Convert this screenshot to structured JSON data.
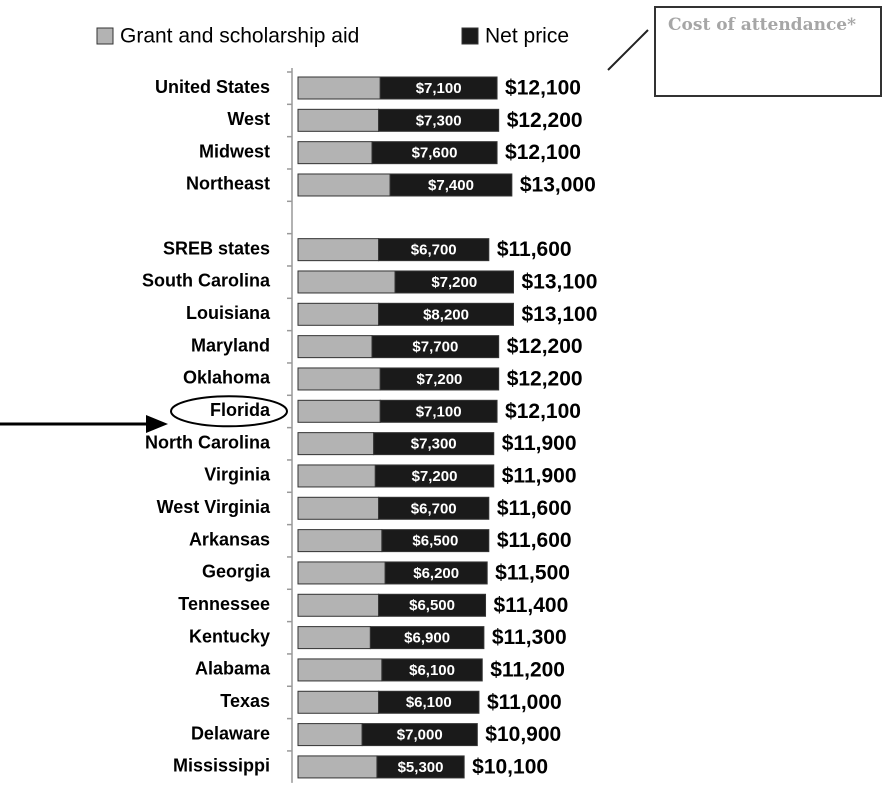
{
  "chart_data": {
    "type": "stacked-bar",
    "annotation": "Cost of attendance*",
    "categories": [
      "United States",
      "West",
      "Midwest",
      "Northeast",
      null,
      "SREB states",
      "South Carolina",
      "Louisiana",
      "Maryland",
      "Oklahoma",
      "Florida",
      "North Carolina",
      "Virginia",
      "West Virginia",
      "Arkansas",
      "Georgia",
      "Tennessee",
      "Kentucky",
      "Alabama",
      "Texas",
      "Delaware",
      "Mississippi"
    ],
    "highlight": "Florida",
    "series": [
      {
        "name": "Grant and scholarship aid",
        "color": "#b3b3b3",
        "values": [
          5000,
          4900,
          4500,
          5600,
          null,
          4900,
          5900,
          4900,
          4500,
          5000,
          5000,
          4600,
          4700,
          4900,
          5100,
          5300,
          4900,
          4400,
          5100,
          4900,
          3900,
          4800
        ]
      },
      {
        "name": "Net price",
        "color": "#1a1a1a",
        "values": [
          7100,
          7300,
          7600,
          7400,
          null,
          6700,
          7200,
          8200,
          7700,
          7200,
          7100,
          7300,
          7200,
          6700,
          6500,
          6200,
          6500,
          6900,
          6100,
          6100,
          7000,
          5300
        ],
        "value_labels": [
          "$7,100",
          "$7,300",
          "$7,600",
          "$7,400",
          null,
          "$6,700",
          "$7,200",
          "$8,200",
          "$7,700",
          "$7,200",
          "$7,100",
          "$7,300",
          "$7,200",
          "$6,700",
          "$6,500",
          "$6,200",
          "$6,500",
          "$6,900",
          "$6,100",
          "$6,100",
          "$7,000",
          "$5,300"
        ]
      }
    ],
    "total_labels": [
      "$12,100",
      "$12,200",
      "$12,100",
      "$13,000",
      null,
      "$11,600",
      "$13,100",
      "$13,100",
      "$12,200",
      "$12,200",
      "$12,100",
      "$11,900",
      "$11,900",
      "$11,600",
      "$11,600",
      "$11,500",
      "$11,400",
      "$11,300",
      "$11,200",
      "$11,000",
      "$10,900",
      "$10,100"
    ],
    "legend": "top"
  }
}
